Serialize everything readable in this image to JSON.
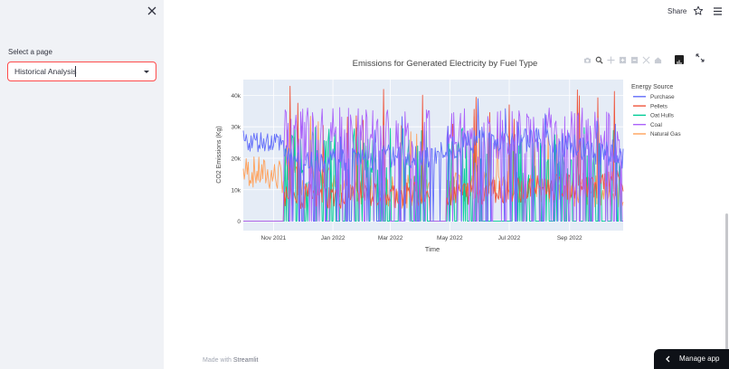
{
  "sidebar": {
    "select_label": "Select a page",
    "select_value": "Historical Analysis"
  },
  "header": {
    "share_label": "Share"
  },
  "footer": {
    "made_with": "Made with",
    "brand": "Streamlit",
    "manage_label": "Manage app"
  },
  "chart_data": {
    "type": "line",
    "title": "Emissions for Generated Electricity by Fuel Type",
    "xlabel": "Time",
    "ylabel": "CO2 Emissions (Kg)",
    "x_range": [
      "2021-10-01",
      "2022-10-26"
    ],
    "x_ticks": [
      {
        "date": "2021-11-01",
        "label": "Nov 2021"
      },
      {
        "date": "2022-01-01",
        "label": "Jan 2022"
      },
      {
        "date": "2022-03-01",
        "label": "Mar 2022"
      },
      {
        "date": "2022-05-01",
        "label": "May 2022"
      },
      {
        "date": "2022-07-01",
        "label": "Jul 2022"
      },
      {
        "date": "2022-09-01",
        "label": "Sep 2022"
      }
    ],
    "ylim": [
      -3000,
      45000
    ],
    "y_ticks": [
      {
        "value": 0,
        "label": "0"
      },
      {
        "value": 10000,
        "label": "10k"
      },
      {
        "value": 20000,
        "label": "20k"
      },
      {
        "value": 30000,
        "label": "30k"
      },
      {
        "value": 40000,
        "label": "40k"
      }
    ],
    "grid": true,
    "legend_position": "right",
    "legend_title": "Energy Source",
    "series": [
      {
        "name": "Purchase",
        "color": "#636efa",
        "pattern": "purchase",
        "anchors": [
          [
            "2021-10-01",
            23000
          ],
          [
            "2021-11-01",
            22000
          ],
          [
            "2021-12-01",
            18000
          ],
          [
            "2022-01-01",
            20000
          ],
          [
            "2022-02-01",
            19000
          ],
          [
            "2022-03-01",
            21000
          ],
          [
            "2022-04-01",
            20000
          ],
          [
            "2022-05-01",
            23000
          ],
          [
            "2022-06-01",
            26000
          ],
          [
            "2022-07-01",
            25000
          ],
          [
            "2022-08-01",
            26000
          ],
          [
            "2022-09-01",
            24000
          ],
          [
            "2022-10-26",
            20000
          ]
        ],
        "amp": 4000,
        "base": 20000
      },
      {
        "name": "Pellets",
        "color": "#ef553b",
        "pattern": "pellets",
        "anchors": [
          [
            "2021-10-01",
            8000
          ],
          [
            "2022-01-15",
            8000
          ],
          [
            "2022-05-01",
            9000
          ],
          [
            "2022-10-26",
            12000
          ]
        ],
        "amp": 6000,
        "base": 8000
      },
      {
        "name": "Oat Hulls",
        "color": "#00cc96",
        "pattern": "oat",
        "anchors": [
          [
            "2021-10-01",
            0
          ],
          [
            "2022-10-26",
            0
          ]
        ],
        "amp": 12000,
        "base": 10000
      },
      {
        "name": "Coal",
        "color": "#ab63fa",
        "pattern": "coal",
        "anchors": [
          [
            "2021-10-01",
            28000
          ],
          [
            "2022-10-26",
            28000
          ]
        ],
        "amp": 5000,
        "base": 28000
      },
      {
        "name": "Natural Gas",
        "color": "#ffa15a",
        "pattern": "gas",
        "anchors": [
          [
            "2021-10-01",
            15000
          ],
          [
            "2021-12-01",
            12000
          ],
          [
            "2022-03-01",
            8000
          ],
          [
            "2022-06-01",
            10000
          ],
          [
            "2022-10-26",
            8000
          ]
        ],
        "amp": 7000,
        "base": 12000
      }
    ]
  }
}
